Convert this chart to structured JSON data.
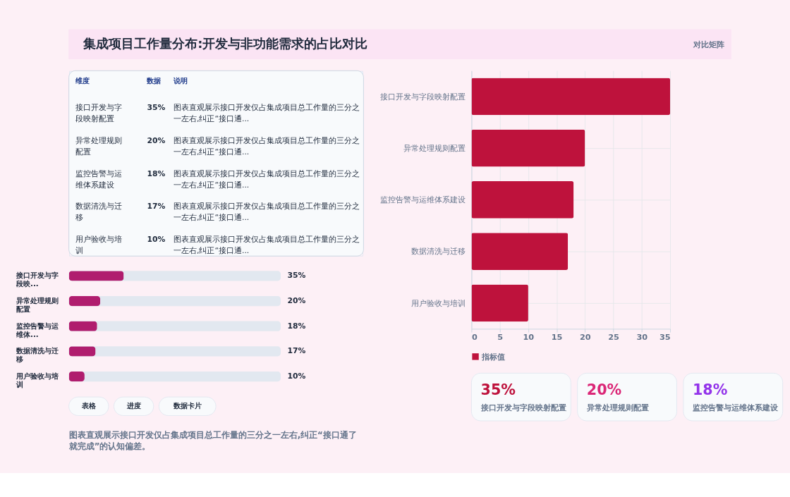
{
  "chart_data": [
    {
      "type": "other",
      "title": "集成项目工作量分布:开发与非功能需求的占比对比",
      "annotations": [
        "对比矩阵"
      ]
    },
    {
      "type": "other",
      "annotations": [
        "维度",
        "数据",
        "说明",
        "接口开发与字段映射配置",
        "35%",
        "图表直观展示接口开发仅占集成项目总工作量的三分之一左右,纠正“接口通...",
        "异常处理规则配置",
        "20%",
        "图表直观展示接口开发仅占集成项目总工作量的三分之一左右,纠正“接口通...",
        "监控告警与运维体系建设",
        "18%",
        "图表直观展示接口开发仅占集成项目总工作量的三分之一左右,纠正“接口通...",
        "数据清洗与迁移",
        "17%",
        "图表直观展示接口开发仅占集成项目总工作量的三分之一左右,纠正“接口通...",
        "用户验收与培训",
        "10%",
        "图表直观展示接口开发仅占集成项目总工作量的三分之一左右,纠正“接口通..."
      ]
    },
    {
      "type": "bar",
      "orientation": "horizontal",
      "categories": [
        "接口开发与字段映...",
        "异常处理规则配置",
        "监控告警与运维体...",
        "数据清洗与迁移",
        "用户验收与培训"
      ],
      "values": [
        35,
        20,
        18,
        17,
        10
      ],
      "value_labels": [
        "35%",
        "20%",
        "18%",
        "17%",
        "10%"
      ],
      "color": "#b01d6e",
      "xlim": [
        0,
        135
      ],
      "tick_labels": "y"
    },
    {
      "type": "other",
      "annotations": [
        "表格",
        "进度",
        "数据卡片",
        "图表直观展示接口开发仅占集成项目总工作量的三分之一左右,纠正“接口通了就完成”的认知偏差。"
      ]
    },
    {
      "type": "bar",
      "orientation": "horizontal",
      "categories": [
        "接口开发与字段映射配置",
        "异常处理规则配置",
        "监控告警与运维体系建设",
        "数据清洗与迁移",
        "用户验收与培训"
      ],
      "series": [
        {
          "name": "指标值",
          "color": "#be123c",
          "values": [
            35,
            20,
            18,
            17,
            10
          ]
        }
      ],
      "xlim": [
        0,
        35
      ],
      "xticks": [
        0,
        5,
        10,
        15,
        20,
        25,
        30,
        35
      ],
      "grid": true,
      "legend": "bottom"
    },
    {
      "type": "other",
      "annotations": [
        "35%",
        "接口开发与字段映射配置",
        "20%",
        "异常处理规则配置",
        "18%",
        "监控告警与运维体系建设"
      ],
      "colors": [
        "#be123c",
        "#db2777",
        "#9333ea"
      ]
    }
  ]
}
